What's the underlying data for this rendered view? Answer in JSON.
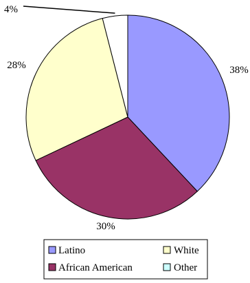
{
  "chart_data": {
    "type": "pie",
    "title": "",
    "slices": [
      {
        "label": "Latino",
        "value": 38,
        "value_label": "38%",
        "color": "#9999ff"
      },
      {
        "label": "African American",
        "value": 30,
        "value_label": "30%",
        "color": "#993366"
      },
      {
        "label": "White",
        "value": 28,
        "value_label": "28%",
        "color": "#ffffcc"
      },
      {
        "label": "Other",
        "value": 4,
        "value_label": "4%",
        "color": "#ffffff"
      }
    ],
    "legend": {
      "placement": "bottom",
      "items": [
        {
          "label": "Latino",
          "color": "#9999ff"
        },
        {
          "label": "White",
          "color": "#ffffcc"
        },
        {
          "label": "African American",
          "color": "#993366"
        },
        {
          "label": "Other",
          "color": "#ccffff"
        }
      ]
    }
  }
}
